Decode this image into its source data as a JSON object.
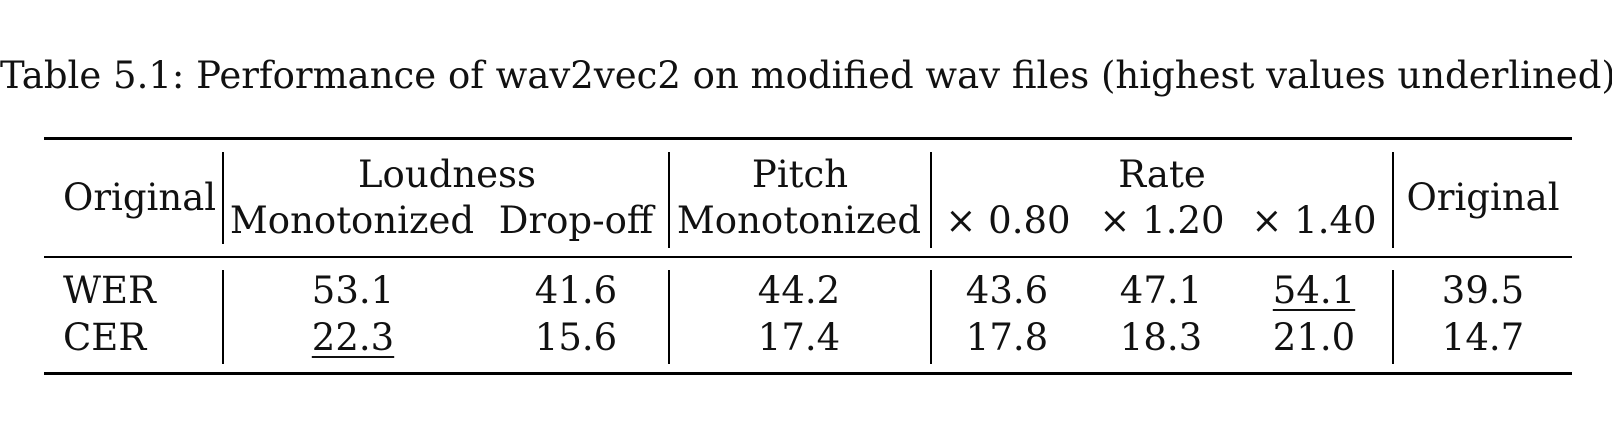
{
  "caption": "Table 5.1: Performance of wav2vec2 on modified wav files (highest values underlined)",
  "table": {
    "header": {
      "left_original": "Original",
      "groups": {
        "loudness": "Loudness",
        "pitch": "Pitch",
        "rate": "Rate"
      },
      "subcolumns": {
        "loudness_monotonized": "Monotonized",
        "loudness_dropoff": "Drop-off",
        "pitch_monotonized": "Monotonized",
        "rate_080": "× 0.80",
        "rate_120": "× 1.20",
        "rate_140": "× 1.40"
      },
      "right_original": "Original"
    },
    "rows": [
      {
        "label": "WER",
        "loudness_monotonized": "53.1",
        "loudness_dropoff": "41.6",
        "pitch_monotonized": "44.2",
        "rate_080": "43.6",
        "rate_120": "47.1",
        "rate_140": "54.1",
        "original": "39.5"
      },
      {
        "label": "CER",
        "loudness_monotonized": "22.3",
        "loudness_dropoff": "15.6",
        "pitch_monotonized": "17.4",
        "rate_080": "17.8",
        "rate_120": "18.3",
        "rate_140": "21.0",
        "original": "14.7"
      }
    ],
    "underlined": [
      "WER.rate_140",
      "CER.loudness_monotonized"
    ]
  }
}
